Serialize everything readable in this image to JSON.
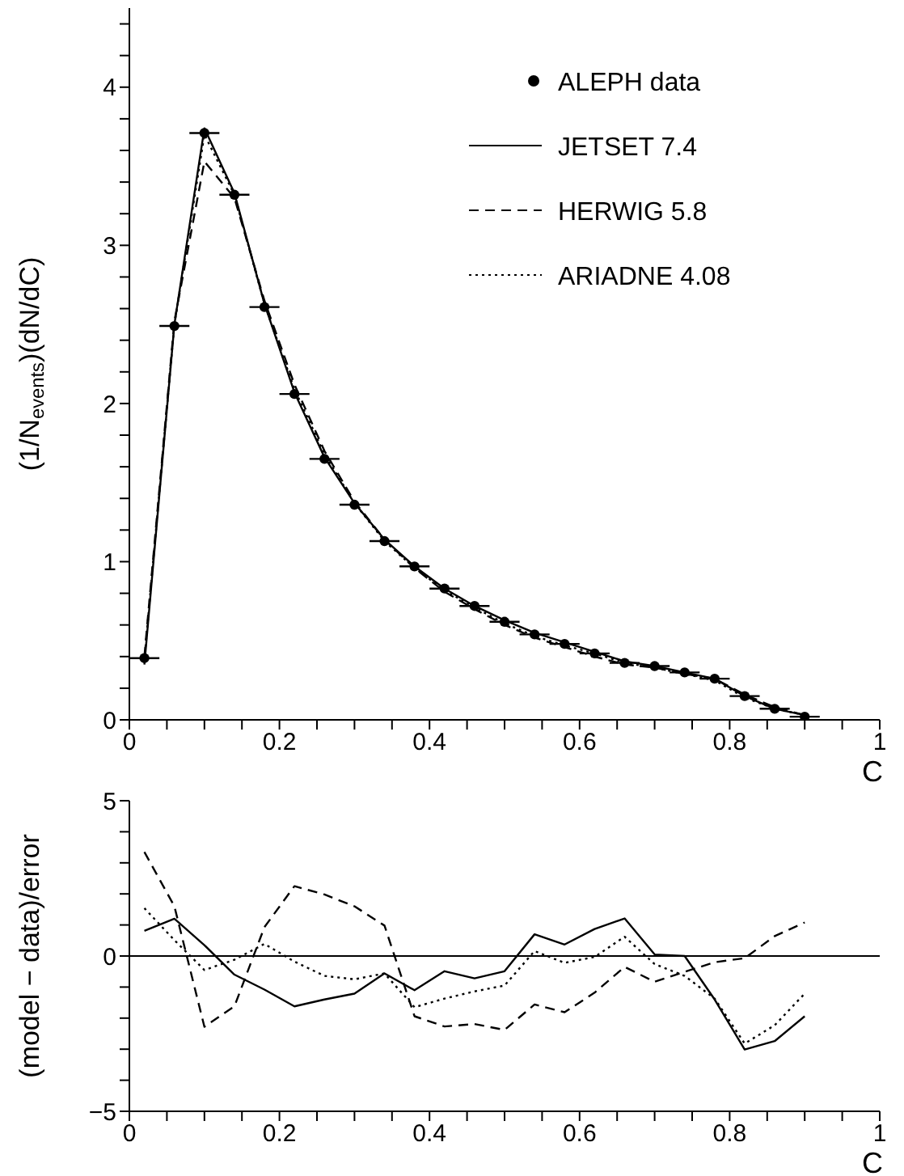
{
  "chart_data": [
    {
      "type": "line",
      "ylabel": "(1/N$_{events}$)(dN/dC)",
      "xlabel": "C",
      "legend": "top right",
      "grid": false,
      "x": [
        0.02,
        0.06,
        0.1,
        0.14,
        0.18,
        0.22,
        0.26,
        0.3,
        0.34,
        0.38,
        0.42,
        0.46,
        0.5,
        0.54,
        0.58,
        0.62,
        0.66,
        0.7,
        0.74,
        0.78,
        0.82,
        0.86,
        0.9
      ],
      "xlim": [
        0,
        1
      ],
      "xticks": [
        0,
        {
          "value": 0.05,
          "label": null
        },
        {
          "value": 0.1,
          "label": null
        },
        {
          "value": 0.15,
          "label": null
        },
        0.2,
        {
          "value": 0.25,
          "label": null
        },
        {
          "value": 0.3,
          "label": null
        },
        {
          "value": 0.35,
          "label": null
        },
        0.4,
        {
          "value": 0.45,
          "label": null
        },
        {
          "value": 0.5,
          "label": null
        },
        {
          "value": 0.55,
          "label": null
        },
        0.6,
        {
          "value": 0.65,
          "label": null
        },
        {
          "value": 0.7,
          "label": null
        },
        {
          "value": 0.75,
          "label": null
        },
        0.8,
        {
          "value": 0.85,
          "label": null
        },
        {
          "value": 0.9,
          "label": null
        },
        {
          "value": 0.95,
          "label": null
        },
        1
      ],
      "ylim": [
        0,
        4.5
      ],
      "yticks": [
        0,
        {
          "value": 0.2,
          "label": null
        },
        {
          "value": 0.4,
          "label": null
        },
        {
          "value": 0.6,
          "label": null
        },
        {
          "value": 0.8,
          "label": null
        },
        1,
        {
          "value": 1.2,
          "label": null
        },
        {
          "value": 1.4,
          "label": null
        },
        {
          "value": 1.6,
          "label": null
        },
        {
          "value": 1.8,
          "label": null
        },
        2,
        {
          "value": 2.2,
          "label": null
        },
        {
          "value": 2.4,
          "label": null
        },
        {
          "value": 2.6,
          "label": null
        },
        {
          "value": 2.8,
          "label": null
        },
        3,
        {
          "value": 3.2,
          "label": null
        },
        {
          "value": 3.4,
          "label": null
        },
        {
          "value": 3.6,
          "label": null
        },
        {
          "value": 3.8,
          "label": null
        },
        4,
        {
          "value": 4.2,
          "label": null
        },
        {
          "value": 4.4,
          "label": null
        }
      ],
      "series": [
        {
          "name": "ALEPH data",
          "type": "scatter",
          "marker": "circle",
          "color": "#000000",
          "values": [
            0.39,
            2.49,
            3.71,
            3.32,
            2.61,
            2.06,
            1.65,
            1.36,
            1.13,
            0.97,
            0.83,
            0.72,
            0.62,
            0.54,
            0.48,
            0.42,
            0.36,
            0.34,
            0.3,
            0.26,
            0.15,
            0.07,
            0.02
          ],
          "xerrors": [
            0.02,
            0.02,
            0.02,
            0.02,
            0.02,
            0.02,
            0.02,
            0.02,
            0.02,
            0.02,
            0.02,
            0.02,
            0.02,
            0.02,
            0.02,
            0.02,
            0.02,
            0.02,
            0.02,
            0.02,
            0.02,
            0.02,
            0.02
          ]
        },
        {
          "name": "JETSET 7.4",
          "line_style": "solid",
          "color": "#000000",
          "values": [
            0.35,
            2.5,
            3.74,
            3.33,
            2.63,
            2.07,
            1.66,
            1.37,
            1.14,
            0.97,
            0.83,
            0.72,
            0.63,
            0.55,
            0.49,
            0.43,
            0.37,
            0.34,
            0.3,
            0.26,
            0.15,
            0.07,
            0.03
          ]
        },
        {
          "name": "HERWIG 5.8",
          "line_style": "dashed",
          "color": "#000000",
          "values": [
            0.4,
            2.52,
            3.53,
            3.3,
            2.65,
            2.12,
            1.7,
            1.38,
            1.14,
            0.96,
            0.81,
            0.7,
            0.6,
            0.52,
            0.46,
            0.4,
            0.35,
            0.33,
            0.29,
            0.26,
            0.16,
            0.08,
            0.03
          ]
        },
        {
          "name": "ARIADNE 4.08",
          "line_style": "dotted",
          "color": "#000000",
          "values": [
            0.38,
            2.5,
            3.7,
            3.32,
            2.63,
            2.09,
            1.68,
            1.37,
            1.13,
            0.96,
            0.82,
            0.71,
            0.61,
            0.53,
            0.47,
            0.42,
            0.36,
            0.33,
            0.29,
            0.25,
            0.14,
            0.07,
            0.03
          ]
        }
      ]
    },
    {
      "type": "line",
      "ylabel": "(model − data)/error",
      "xlabel": "C",
      "legend": false,
      "grid": false,
      "x": [
        0.02,
        0.06,
        0.1,
        0.14,
        0.18,
        0.22,
        0.26,
        0.3,
        0.34,
        0.38,
        0.42,
        0.46,
        0.5,
        0.54,
        0.58,
        0.62,
        0.66,
        0.7,
        0.74,
        0.78,
        0.82,
        0.86,
        0.9
      ],
      "xlim": [
        0,
        1
      ],
      "xticks": [
        0,
        {
          "value": 0.05,
          "label": null
        },
        {
          "value": 0.1,
          "label": null
        },
        {
          "value": 0.15,
          "label": null
        },
        0.2,
        {
          "value": 0.25,
          "label": null
        },
        {
          "value": 0.3,
          "label": null
        },
        {
          "value": 0.35,
          "label": null
        },
        0.4,
        {
          "value": 0.45,
          "label": null
        },
        {
          "value": 0.5,
          "label": null
        },
        {
          "value": 0.55,
          "label": null
        },
        0.6,
        {
          "value": 0.65,
          "label": null
        },
        {
          "value": 0.7,
          "label": null
        },
        {
          "value": 0.75,
          "label": null
        },
        0.8,
        {
          "value": 0.85,
          "label": null
        },
        {
          "value": 0.9,
          "label": null
        },
        {
          "value": 0.95,
          "label": null
        },
        1
      ],
      "ylim": [
        -5,
        5
      ],
      "yticks": [
        {
          "value": -5,
          "label": "−5"
        },
        {
          "value": -4,
          "label": null
        },
        {
          "value": -3,
          "label": null
        },
        {
          "value": -2,
          "label": null
        },
        {
          "value": -1,
          "label": null
        },
        0,
        {
          "value": 1,
          "label": null
        },
        {
          "value": 2,
          "label": null
        },
        {
          "value": 3,
          "label": null
        },
        {
          "value": 4,
          "label": null
        },
        5
      ],
      "ref_lines": [
        {
          "axis": "y",
          "value": 0,
          "color": "#000000",
          "line_style": "solid"
        }
      ],
      "series": [
        {
          "line_style": "solid",
          "color": "#000000",
          "values": [
            0.81,
            1.2,
            0.35,
            -0.6,
            -1.08,
            -1.62,
            -1.4,
            -1.21,
            -0.56,
            -1.1,
            -0.49,
            -0.72,
            -0.49,
            0.7,
            0.37,
            0.87,
            1.21,
            0.05,
            0,
            -1.4,
            -3.01,
            -2.74,
            -1.94
          ]
        },
        {
          "line_style": "dashed",
          "color": "#000000",
          "values": [
            3.35,
            1.6,
            -2.28,
            -1.62,
            0.93,
            2.25,
            1.98,
            1.6,
            0.98,
            -1.94,
            -2.27,
            -2.19,
            -2.38,
            -1.56,
            -1.81,
            -1.18,
            -0.35,
            -0.83,
            -0.51,
            -0.2,
            -0.07,
            0.64,
            1.08
          ]
        },
        {
          "line_style": "dotted",
          "color": "#000000",
          "values": [
            1.54,
            0.51,
            -0.45,
            -0.12,
            0.39,
            -0.18,
            -0.64,
            -0.75,
            -0.56,
            -1.65,
            -1.37,
            -1.14,
            -0.95,
            0.16,
            -0.22,
            -0.03,
            0.62,
            -0.26,
            -0.64,
            -1.37,
            -2.82,
            -2.23,
            -1.21
          ]
        }
      ]
    }
  ]
}
